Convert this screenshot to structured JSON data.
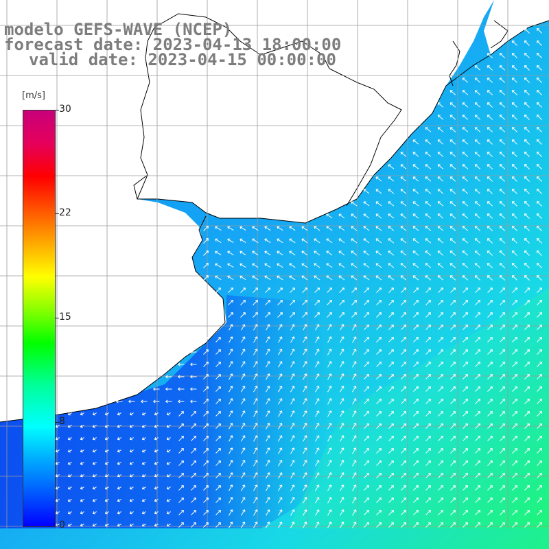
{
  "title": {
    "model": "modelo GEFS-WAVE (NCEP)",
    "forecast": "forecast date: 2023-04-13 18:00:00",
    "valid": "valid date: 2023-04-15 00:00:00"
  },
  "colorbar": {
    "unit": "[m/s]",
    "ticks": [
      "30",
      "22",
      "15",
      "8",
      "0"
    ],
    "tick_values": [
      30,
      22,
      15,
      8,
      0
    ],
    "min": 0,
    "max": 30,
    "colors": [
      "#0000ff",
      "#00aaff",
      "#00ffff",
      "#00ff00",
      "#ffff00",
      "#ff0000",
      "#c8007a"
    ]
  },
  "map": {
    "land_color": "#ffffff",
    "coast_color": "#000000",
    "grid_color": "#999999",
    "vector_color": "#ffffff",
    "field": "wind speed with direction vectors"
  }
}
